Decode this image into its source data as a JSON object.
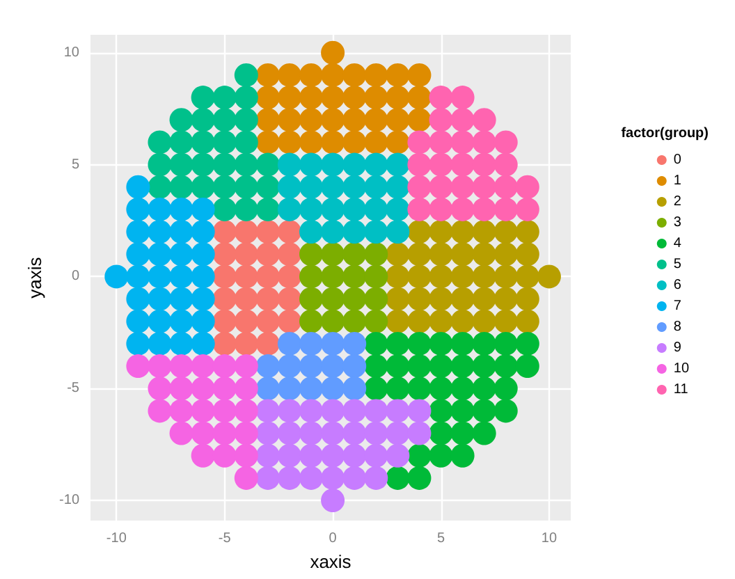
{
  "chart_data": {
    "type": "scatter",
    "xlabel": "xaxis",
    "ylabel": "yaxis",
    "legend_title": "factor(group)",
    "xlim": [
      -11.2,
      11
    ],
    "ylim": [
      -10.9,
      10.8
    ],
    "xticks": [
      -10,
      -5,
      0,
      5,
      10
    ],
    "yticks": [
      -10,
      -5,
      0,
      5,
      10
    ],
    "grid": true,
    "legend": "right",
    "marker": "circle",
    "series": [
      {
        "name": "0",
        "color": "#f8766d",
        "x": [
          -5,
          -4,
          -3,
          -2,
          -5,
          -4,
          -3,
          -2,
          -5,
          -4,
          -3,
          -2,
          -5,
          -4,
          -3,
          -2,
          -5,
          -4,
          -3,
          -2,
          -5,
          -4,
          -3
        ],
        "values": [
          2,
          2,
          2,
          2,
          1,
          1,
          1,
          1,
          0,
          0,
          0,
          0,
          -1,
          -1,
          -1,
          -1,
          -2,
          -2,
          -2,
          -2,
          -3,
          -3,
          -3
        ]
      },
      {
        "name": "1",
        "color": "#de8c00",
        "x": [
          0,
          -3,
          -2,
          -1,
          0,
          1,
          2,
          3,
          4,
          -3,
          -2,
          -1,
          0,
          1,
          2,
          3,
          4,
          -3,
          -2,
          -1,
          0,
          1,
          2,
          3,
          4,
          -3,
          -2,
          -1,
          0,
          1,
          2,
          3
        ],
        "values": [
          10,
          9,
          9,
          9,
          9,
          9,
          9,
          9,
          9,
          8,
          8,
          8,
          8,
          8,
          8,
          8,
          8,
          7,
          7,
          7,
          7,
          7,
          7,
          7,
          7,
          6,
          6,
          6,
          6,
          6,
          6,
          6
        ]
      },
      {
        "name": "2",
        "color": "#b79f00",
        "x": [
          4,
          5,
          6,
          7,
          8,
          9,
          3,
          4,
          5,
          6,
          7,
          8,
          9,
          3,
          4,
          5,
          6,
          7,
          8,
          9,
          10,
          3,
          4,
          5,
          6,
          7,
          8,
          9,
          3,
          4,
          5,
          6,
          7,
          8,
          9
        ],
        "values": [
          2,
          2,
          2,
          2,
          2,
          2,
          1,
          1,
          1,
          1,
          1,
          1,
          1,
          0,
          0,
          0,
          0,
          0,
          0,
          0,
          0,
          -1,
          -1,
          -1,
          -1,
          -1,
          -1,
          -1,
          -2,
          -2,
          -2,
          -2,
          -2,
          -2,
          -2
        ]
      },
      {
        "name": "3",
        "color": "#7cae00",
        "x": [
          -1,
          0,
          1,
          2,
          -1,
          0,
          1,
          2,
          -1,
          0,
          1,
          2,
          -1,
          0,
          1,
          2
        ],
        "values": [
          1,
          1,
          1,
          1,
          0,
          0,
          0,
          0,
          -1,
          -1,
          -1,
          -1,
          -2,
          -2,
          -2,
          -2
        ]
      },
      {
        "name": "4",
        "color": "#00ba38",
        "x": [
          2,
          3,
          4,
          5,
          6,
          7,
          8,
          9,
          2,
          3,
          4,
          5,
          6,
          7,
          8,
          9,
          2,
          3,
          4,
          5,
          6,
          7,
          8,
          5,
          6,
          7,
          8,
          5,
          6,
          7,
          4,
          5,
          6,
          3,
          4
        ],
        "values": [
          -3,
          -3,
          -3,
          -3,
          -3,
          -3,
          -3,
          -3,
          -4,
          -4,
          -4,
          -4,
          -4,
          -4,
          -4,
          -4,
          -5,
          -5,
          -5,
          -5,
          -5,
          -5,
          -5,
          -6,
          -6,
          -6,
          -6,
          -7,
          -7,
          -7,
          -8,
          -8,
          -8,
          -9,
          -9
        ]
      },
      {
        "name": "5",
        "color": "#00c08b",
        "x": [
          -4,
          -6,
          -5,
          -4,
          -7,
          -6,
          -5,
          -4,
          -8,
          -7,
          -6,
          -5,
          -4,
          -8,
          -7,
          -6,
          -5,
          -4,
          -3,
          -8,
          -7,
          -6,
          -5,
          -4,
          -3,
          -5,
          -4,
          -3
        ],
        "values": [
          9,
          8,
          8,
          8,
          7,
          7,
          7,
          7,
          6,
          6,
          6,
          6,
          6,
          5,
          5,
          5,
          5,
          5,
          5,
          4,
          4,
          4,
          4,
          4,
          4,
          3,
          3,
          3
        ]
      },
      {
        "name": "6",
        "color": "#00bfc4",
        "x": [
          -2,
          -1,
          0,
          1,
          2,
          3,
          -2,
          -1,
          0,
          1,
          2,
          3,
          -2,
          -1,
          0,
          1,
          2,
          3,
          -1,
          0,
          1,
          2,
          3
        ],
        "values": [
          5,
          5,
          5,
          5,
          5,
          5,
          4,
          4,
          4,
          4,
          4,
          4,
          3,
          3,
          3,
          3,
          3,
          3,
          2,
          2,
          2,
          2,
          2
        ]
      },
      {
        "name": "7",
        "color": "#00b4f0",
        "x": [
          -9,
          -9,
          -8,
          -7,
          -6,
          -9,
          -8,
          -7,
          -6,
          -9,
          -8,
          -7,
          -6,
          -10,
          -9,
          -8,
          -7,
          -6,
          -9,
          -8,
          -7,
          -6,
          -9,
          -8,
          -7,
          -6,
          -9,
          -8,
          -7,
          -6
        ],
        "values": [
          4,
          3,
          3,
          3,
          3,
          2,
          2,
          2,
          2,
          1,
          1,
          1,
          1,
          0,
          0,
          0,
          0,
          0,
          -1,
          -1,
          -1,
          -1,
          -2,
          -2,
          -2,
          -2,
          -3,
          -3,
          -3,
          -3
        ]
      },
      {
        "name": "8",
        "color": "#619cff",
        "x": [
          -2,
          -1,
          0,
          1,
          -3,
          -2,
          -1,
          0,
          1,
          -3,
          -2,
          -1,
          0,
          1
        ],
        "values": [
          -3,
          -3,
          -3,
          -3,
          -4,
          -4,
          -4,
          -4,
          -4,
          -5,
          -5,
          -5,
          -5,
          -5
        ]
      },
      {
        "name": "9",
        "color": "#c77cff",
        "x": [
          -3,
          -2,
          -1,
          0,
          1,
          2,
          3,
          4,
          -3,
          -2,
          -1,
          0,
          1,
          2,
          3,
          4,
          -3,
          -2,
          -1,
          0,
          1,
          2,
          3,
          -3,
          -2,
          -1,
          0,
          1,
          2,
          0
        ],
        "values": [
          -6,
          -6,
          -6,
          -6,
          -6,
          -6,
          -6,
          -6,
          -7,
          -7,
          -7,
          -7,
          -7,
          -7,
          -7,
          -7,
          -8,
          -8,
          -8,
          -8,
          -8,
          -8,
          -8,
          -9,
          -9,
          -9,
          -9,
          -9,
          -9,
          -10
        ]
      },
      {
        "name": "10",
        "color": "#f564e3",
        "x": [
          -9,
          -8,
          -7,
          -6,
          -5,
          -4,
          -8,
          -7,
          -6,
          -5,
          -4,
          -8,
          -7,
          -6,
          -5,
          -4,
          -7,
          -6,
          -5,
          -4,
          -6,
          -5,
          -4,
          -4
        ],
        "values": [
          -4,
          -4,
          -4,
          -4,
          -4,
          -4,
          -5,
          -5,
          -5,
          -5,
          -5,
          -6,
          -6,
          -6,
          -6,
          -6,
          -7,
          -7,
          -7,
          -7,
          -8,
          -8,
          -8,
          -9
        ]
      },
      {
        "name": "11",
        "color": "#ff64b0",
        "x": [
          5,
          6,
          5,
          6,
          7,
          4,
          5,
          6,
          7,
          8,
          4,
          5,
          6,
          7,
          8,
          4,
          5,
          6,
          7,
          8,
          9,
          4,
          5,
          6,
          7,
          8,
          9
        ],
        "values": [
          8,
          8,
          7,
          7,
          7,
          6,
          6,
          6,
          6,
          6,
          5,
          5,
          5,
          5,
          5,
          4,
          4,
          4,
          4,
          4,
          4,
          3,
          3,
          3,
          3,
          3,
          3
        ]
      }
    ]
  }
}
